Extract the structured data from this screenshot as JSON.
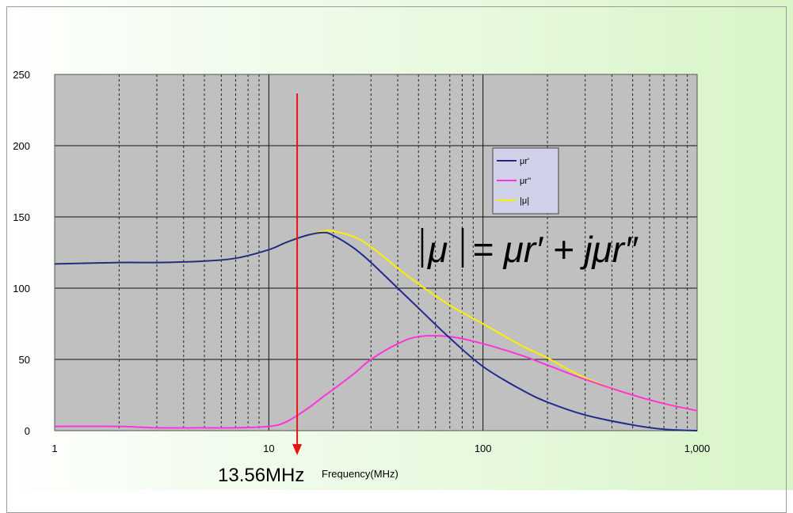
{
  "chart_data": {
    "type": "line",
    "title": "",
    "xlabel": "Frequency(MHz)",
    "ylabel": "",
    "x_scale": "log",
    "xlim": [
      1,
      1000
    ],
    "ylim": [
      0,
      250
    ],
    "x_ticks": [
      1,
      10,
      100,
      1000
    ],
    "x_tick_labels": [
      "1",
      "10",
      "100",
      "1,000"
    ],
    "y_ticks": [
      0,
      50,
      100,
      150,
      200,
      250
    ],
    "y_tick_labels": [
      "0",
      "50",
      "100",
      "150",
      "200",
      "250"
    ],
    "grid": true,
    "legend_position": "center-right",
    "series": [
      {
        "name": "μr'",
        "color": "#1f2a8c",
        "x": [
          1,
          2,
          3,
          5,
          7,
          10,
          12,
          15,
          18,
          20,
          25,
          30,
          40,
          50,
          70,
          100,
          150,
          200,
          300,
          500,
          700,
          1000
        ],
        "y": [
          117,
          118,
          118,
          119,
          121,
          127,
          132,
          137,
          139,
          137,
          128,
          118,
          100,
          86,
          65,
          45,
          29,
          20,
          11,
          4,
          1,
          0
        ]
      },
      {
        "name": "μr''",
        "color": "#ff33dd",
        "x": [
          1,
          2,
          3,
          5,
          7,
          10,
          12,
          15,
          18,
          20,
          25,
          30,
          40,
          50,
          70,
          100,
          150,
          200,
          300,
          500,
          700,
          1000
        ],
        "y": [
          3,
          3,
          2,
          2,
          2,
          3,
          6,
          15,
          24,
          29,
          40,
          50,
          61,
          66,
          66,
          61,
          53,
          46,
          36,
          25,
          19,
          14
        ]
      },
      {
        "name": "|μ|",
        "color": "#ffee00",
        "x": [
          1,
          2,
          3,
          5,
          7,
          10,
          12,
          15,
          18,
          20,
          25,
          30,
          40,
          50,
          70,
          100,
          150,
          200,
          300,
          500,
          700,
          1000
        ],
        "y": [
          117,
          118,
          118,
          119,
          121,
          127,
          132,
          137,
          140,
          140,
          136,
          129,
          114,
          103,
          88,
          75,
          60,
          51,
          37,
          25,
          19,
          14
        ]
      }
    ],
    "annotations": {
      "marker_label": "13.56MHz",
      "marker_x": 13.56,
      "marker_color": "#ee1111",
      "formula_lhs": "μ",
      "formula_rhs": "= μr′ + jμr″"
    }
  }
}
